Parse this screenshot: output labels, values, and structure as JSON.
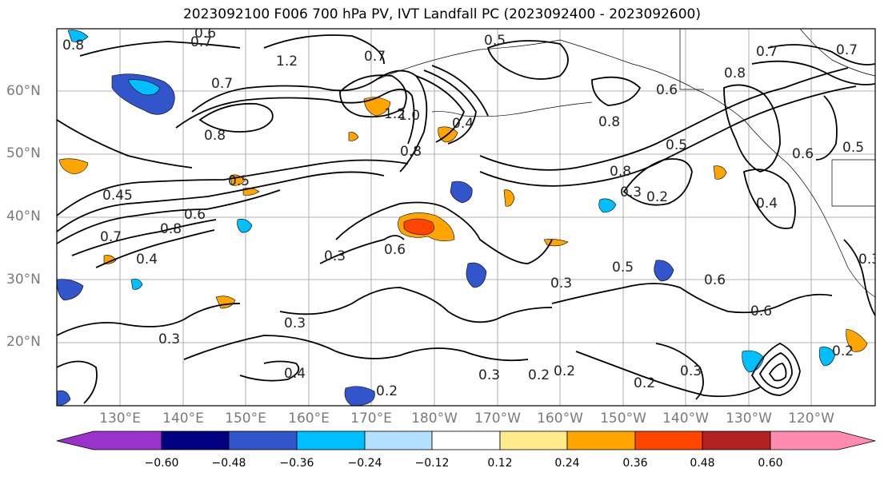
{
  "title": "2023092100 F006 700 hPa PV, IVT Landfall PC (2023092400 - 2023092600)",
  "lat_labels": [
    "60°N",
    "50°N",
    "40°N",
    "30°N",
    "20°N"
  ],
  "lon_labels": [
    "130°E",
    "140°E",
    "150°E",
    "160°E",
    "170°E",
    "180°W",
    "170°W",
    "160°W",
    "150°W",
    "140°W",
    "130°W",
    "120°W"
  ],
  "contour_labels": [
    "0.8",
    "0.7",
    "0.6",
    "1.2",
    "0.7",
    "0.5",
    "0.7",
    "0.8",
    "1.2",
    "1.0",
    "0.8",
    "0.6",
    "0.5",
    "0.8",
    "0.4",
    "0.8",
    "0.8",
    "0.5",
    "0.7",
    "0.6",
    "0.5",
    "0.3",
    "0.2",
    "0.7",
    "0.8",
    "0.45",
    "0.7",
    "0.4",
    "0.6",
    "0.3",
    "0.6",
    "0.3",
    "0.3",
    "0.4",
    "0.3",
    "0.2",
    "0.4",
    "0.3",
    "0.5",
    "0.6",
    "0.6",
    "0.3",
    "0.2",
    "0.2",
    "0.3",
    "0.2",
    "0.2"
  ],
  "colorbar": {
    "ticks": [
      "−0.60",
      "−0.48",
      "−0.36",
      "−0.24",
      "−0.12",
      "0.12",
      "0.24",
      "0.36",
      "0.48",
      "0.60"
    ],
    "colors": [
      "#9933cc",
      "#000080",
      "#3355cc",
      "#00bfff",
      "#b3e0ff",
      "#ffffff",
      "#ffeb8c",
      "#ffa500",
      "#ff4500",
      "#b22222",
      "#ff8cb0"
    ]
  },
  "shading": {
    "blue_patches": 14,
    "orange_patches": 14
  }
}
